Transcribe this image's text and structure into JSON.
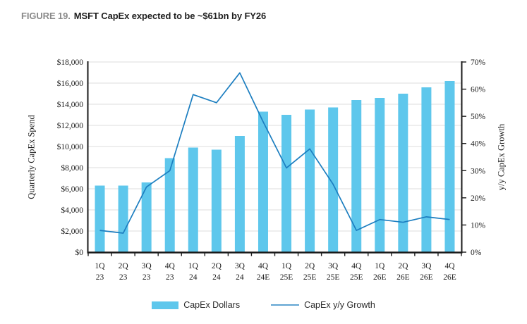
{
  "figure": {
    "label": "FIGURE 19.",
    "title": "MSFT CapEx expected to be ~$61bn by FY26"
  },
  "chart_data": {
    "type": "combo-bar-line",
    "categories": [
      "1Q 23",
      "2Q 23",
      "3Q 23",
      "4Q 23",
      "1Q 24",
      "2Q 24",
      "3Q 24",
      "4Q 24E",
      "1Q 25E",
      "2Q 25E",
      "3Q 25E",
      "4Q 25E",
      "1Q 26E",
      "2Q 26E",
      "3Q 26E",
      "4Q 26E"
    ],
    "series": [
      {
        "name": "CapEx Dollars",
        "type": "bar",
        "axis": "left",
        "values": [
          6300,
          6300,
          6600,
          8900,
          9900,
          9700,
          11000,
          13300,
          13000,
          13500,
          13700,
          14400,
          14600,
          15000,
          15600,
          16200
        ]
      },
      {
        "name": "CapEx y/y Growth",
        "type": "line",
        "axis": "right",
        "values": [
          8,
          7,
          24,
          30,
          58,
          55,
          66,
          48,
          31,
          38,
          25,
          8,
          12,
          11,
          13,
          12
        ]
      }
    ],
    "left_axis": {
      "title": "Quarterly CapEx Spend",
      "min": 0,
      "max": 18000,
      "step": 2000,
      "ticks": [
        "$0",
        "$2,000",
        "$4,000",
        "$6,000",
        "$8,000",
        "$10,000",
        "$12,000",
        "$14,000",
        "$16,000",
        "$18,000"
      ]
    },
    "right_axis": {
      "title": "y/y CapEx Growth",
      "min": 0,
      "max": 70,
      "step": 10,
      "ticks": [
        "0%",
        "10%",
        "20%",
        "30%",
        "40%",
        "50%",
        "60%",
        "70%"
      ]
    },
    "legend": [
      {
        "label": "CapEx Dollars",
        "swatch": "bar"
      },
      {
        "label": "CapEx y/y Growth",
        "swatch": "line"
      }
    ],
    "grid": "horizontal",
    "colors": {
      "bar": "#5EC7EC",
      "line": "#1C7EC0",
      "legend_line": "#5FA4D2",
      "gridline": "#DCDCDC",
      "axis": "#1A1A1A"
    }
  }
}
